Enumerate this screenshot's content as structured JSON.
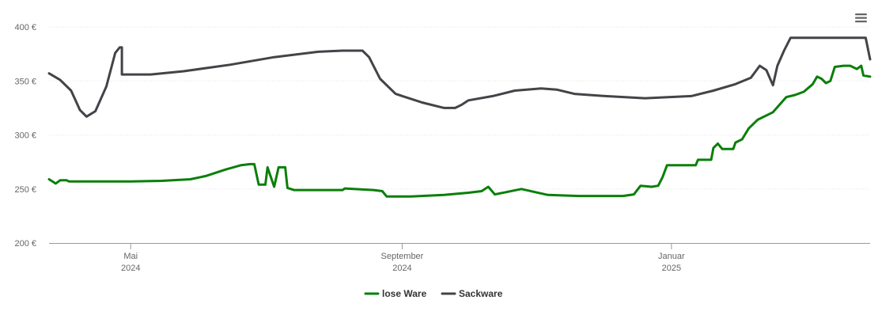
{
  "chart_data": {
    "type": "line",
    "title": "",
    "xlabel": "",
    "ylabel": "",
    "ylim": [
      200,
      400
    ],
    "y_ticks": [
      {
        "value": 200,
        "label": "200 €"
      },
      {
        "value": 250,
        "label": "250 €"
      },
      {
        "value": 300,
        "label": "300 €"
      },
      {
        "value": 350,
        "label": "350 €"
      },
      {
        "value": 400,
        "label": "400 €"
      }
    ],
    "xlim": [
      "2024-03-25",
      "2025-04-01"
    ],
    "x_ticks": [
      {
        "date": "2024-05-01",
        "line1": "Mai",
        "line2": "2024"
      },
      {
        "date": "2024-09-01",
        "line1": "September",
        "line2": "2024"
      },
      {
        "date": "2025-01-01",
        "line1": "Januar",
        "line2": "2025"
      }
    ],
    "grid": true,
    "legend_position": "bottom-center",
    "series": [
      {
        "name": "lose Ware",
        "color": "#0a7f0a",
        "points": [
          [
            "2024-03-25",
            259
          ],
          [
            "2024-03-28",
            255
          ],
          [
            "2024-03-30",
            258
          ],
          [
            "2024-04-02",
            258
          ],
          [
            "2024-04-03",
            257
          ],
          [
            "2024-04-12",
            257
          ],
          [
            "2024-05-01",
            257
          ],
          [
            "2024-05-15",
            257.5
          ],
          [
            "2024-05-28",
            259
          ],
          [
            "2024-06-04",
            262
          ],
          [
            "2024-06-13",
            268
          ],
          [
            "2024-06-20",
            272
          ],
          [
            "2024-06-24",
            273
          ],
          [
            "2024-06-26",
            273
          ],
          [
            "2024-06-28",
            254
          ],
          [
            "2024-07-01",
            254
          ],
          [
            "2024-07-02",
            270
          ],
          [
            "2024-07-05",
            252
          ],
          [
            "2024-07-07",
            270
          ],
          [
            "2024-07-10",
            270
          ],
          [
            "2024-07-11",
            251
          ],
          [
            "2024-07-14",
            249
          ],
          [
            "2024-08-05",
            249
          ],
          [
            "2024-08-06",
            250.5
          ],
          [
            "2024-08-19",
            249
          ],
          [
            "2024-08-23",
            248
          ],
          [
            "2024-08-25",
            243
          ],
          [
            "2024-09-05",
            243
          ],
          [
            "2024-09-20",
            244.5
          ],
          [
            "2024-10-01",
            246.5
          ],
          [
            "2024-10-07",
            248
          ],
          [
            "2024-10-10",
            252
          ],
          [
            "2024-10-13",
            245
          ],
          [
            "2024-10-18",
            247
          ],
          [
            "2024-10-25",
            250
          ],
          [
            "2024-11-06",
            244.5
          ],
          [
            "2024-11-20",
            243.5
          ],
          [
            "2024-12-10",
            243.5
          ],
          [
            "2024-12-15",
            245
          ],
          [
            "2024-12-18",
            253
          ],
          [
            "2024-12-23",
            252
          ],
          [
            "2024-12-26",
            253
          ],
          [
            "2024-12-28",
            261
          ],
          [
            "2024-12-30",
            272
          ],
          [
            "2025-01-12",
            272
          ],
          [
            "2025-01-13",
            277
          ],
          [
            "2025-01-19",
            277
          ],
          [
            "2025-01-20",
            288
          ],
          [
            "2025-01-22",
            292
          ],
          [
            "2025-01-24",
            287
          ],
          [
            "2025-01-29",
            287
          ],
          [
            "2025-01-30",
            293
          ],
          [
            "2025-02-02",
            296
          ],
          [
            "2025-02-05",
            306
          ],
          [
            "2025-02-09",
            314
          ],
          [
            "2025-02-16",
            321
          ],
          [
            "2025-02-22",
            335
          ],
          [
            "2025-02-26",
            337
          ],
          [
            "2025-03-02",
            340
          ],
          [
            "2025-03-06",
            347
          ],
          [
            "2025-03-08",
            354
          ],
          [
            "2025-03-10",
            352
          ],
          [
            "2025-03-12",
            348
          ],
          [
            "2025-03-14",
            350
          ],
          [
            "2025-03-16",
            363
          ],
          [
            "2025-03-20",
            364
          ],
          [
            "2025-03-23",
            364
          ],
          [
            "2025-03-26",
            361
          ],
          [
            "2025-03-28",
            364
          ],
          [
            "2025-03-29",
            355
          ],
          [
            "2025-04-01",
            354
          ]
        ]
      },
      {
        "name": "Sackware",
        "color": "#434348",
        "points": [
          [
            "2024-03-25",
            357
          ],
          [
            "2024-03-30",
            351
          ],
          [
            "2024-04-04",
            341
          ],
          [
            "2024-04-08",
            323
          ],
          [
            "2024-04-11",
            317
          ],
          [
            "2024-04-15",
            322
          ],
          [
            "2024-04-20",
            345
          ],
          [
            "2024-04-24",
            376
          ],
          [
            "2024-04-26",
            381
          ],
          [
            "2024-04-27",
            381
          ],
          [
            "2024-04-27",
            356
          ],
          [
            "2024-05-10",
            356
          ],
          [
            "2024-05-25",
            359
          ],
          [
            "2024-06-15",
            365
          ],
          [
            "2024-07-05",
            372
          ],
          [
            "2024-07-25",
            377
          ],
          [
            "2024-08-05",
            378
          ],
          [
            "2024-08-14",
            378
          ],
          [
            "2024-08-17",
            372
          ],
          [
            "2024-08-22",
            352
          ],
          [
            "2024-08-29",
            338
          ],
          [
            "2024-09-10",
            330
          ],
          [
            "2024-09-20",
            325
          ],
          [
            "2024-09-25",
            325
          ],
          [
            "2024-09-28",
            328
          ],
          [
            "2024-10-01",
            332
          ],
          [
            "2024-10-12",
            336
          ],
          [
            "2024-10-22",
            341
          ],
          [
            "2024-11-03",
            343
          ],
          [
            "2024-11-10",
            342
          ],
          [
            "2024-11-18",
            338
          ],
          [
            "2024-12-02",
            336
          ],
          [
            "2024-12-20",
            334
          ],
          [
            "2025-01-10",
            336
          ],
          [
            "2025-01-20",
            341
          ],
          [
            "2025-01-30",
            347
          ],
          [
            "2025-02-06",
            353
          ],
          [
            "2025-02-10",
            364
          ],
          [
            "2025-02-13",
            360
          ],
          [
            "2025-02-16",
            346
          ],
          [
            "2025-02-18",
            364
          ],
          [
            "2025-02-21",
            378
          ],
          [
            "2025-02-24",
            390
          ],
          [
            "2025-03-01",
            390
          ],
          [
            "2025-03-30",
            390
          ],
          [
            "2025-03-31",
            380
          ],
          [
            "2025-04-01",
            370
          ]
        ]
      }
    ]
  },
  "menu": {
    "icon": "hamburger-menu-icon"
  }
}
